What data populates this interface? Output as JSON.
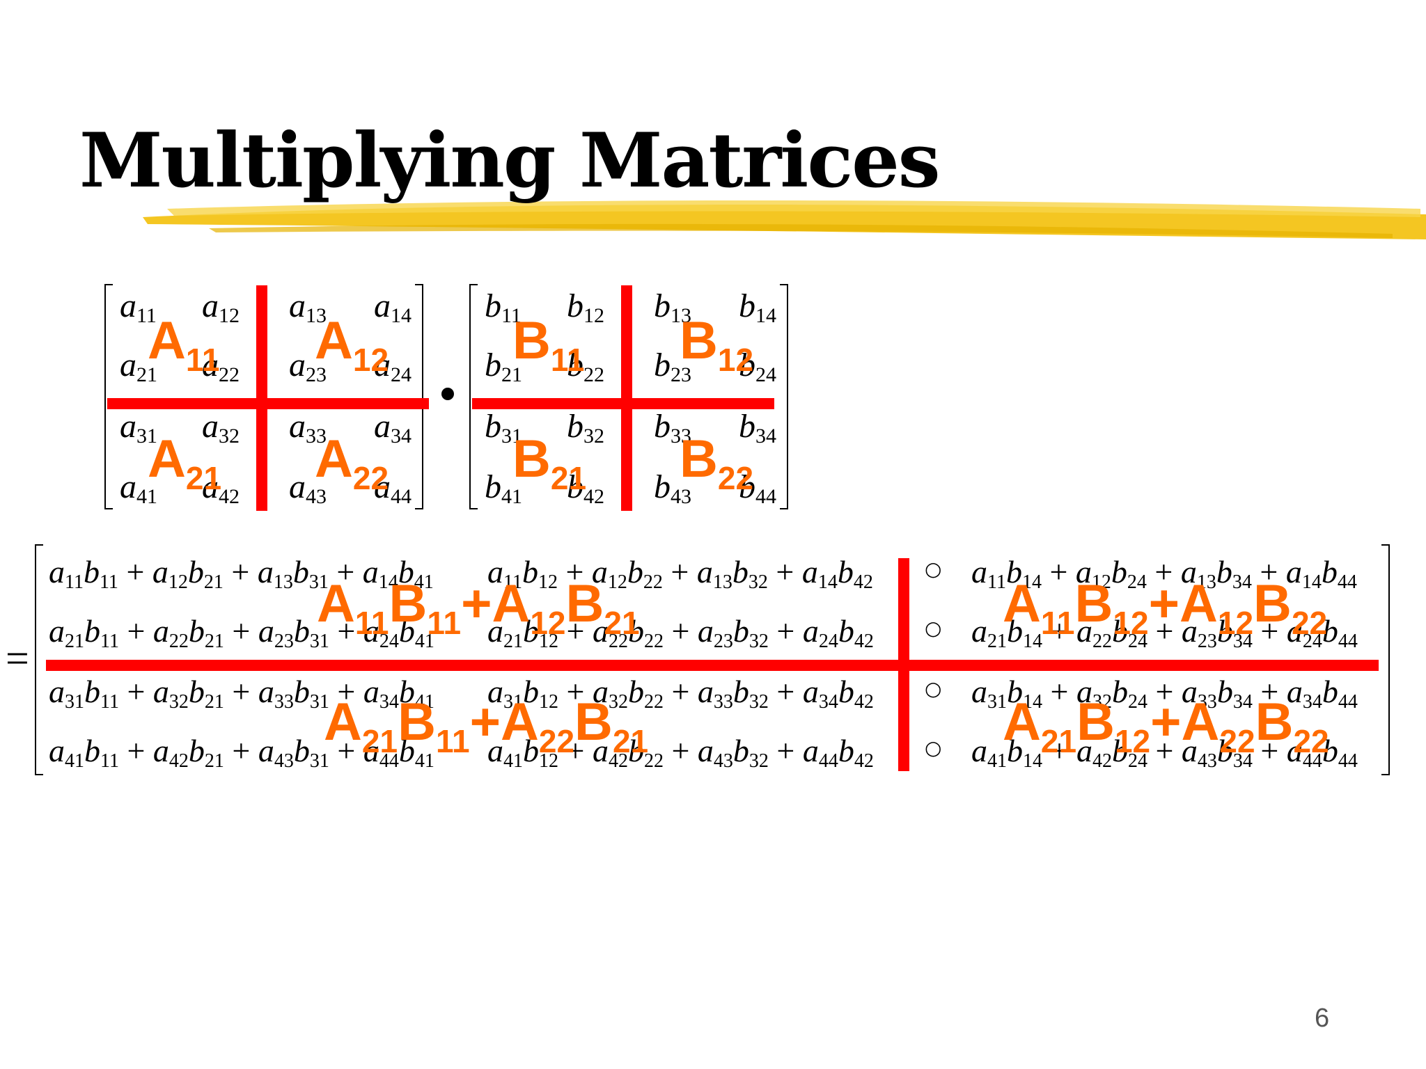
{
  "title": "Multiplying Matrices",
  "page_number": "6",
  "matrix_a": [
    [
      [
        "a",
        "11"
      ],
      [
        "a",
        "12"
      ],
      [
        "a",
        "13"
      ],
      [
        "a",
        "14"
      ]
    ],
    [
      [
        "a",
        "21"
      ],
      [
        "a",
        "22"
      ],
      [
        "a",
        "23"
      ],
      [
        "a",
        "24"
      ]
    ],
    [
      [
        "a",
        "31"
      ],
      [
        "a",
        "32"
      ],
      [
        "a",
        "33"
      ],
      [
        "a",
        "34"
      ]
    ],
    [
      [
        "a",
        "41"
      ],
      [
        "a",
        "42"
      ],
      [
        "a",
        "43"
      ],
      [
        "a",
        "44"
      ]
    ]
  ],
  "matrix_b": [
    [
      [
        "b",
        "11"
      ],
      [
        "b",
        "12"
      ],
      [
        "b",
        "13"
      ],
      [
        "b",
        "14"
      ]
    ],
    [
      [
        "b",
        "21"
      ],
      [
        "b",
        "22"
      ],
      [
        "b",
        "23"
      ],
      [
        "b",
        "24"
      ]
    ],
    [
      [
        "b",
        "31"
      ],
      [
        "b",
        "32"
      ],
      [
        "b",
        "33"
      ],
      [
        "b",
        "34"
      ]
    ],
    [
      [
        "b",
        "41"
      ],
      [
        "b",
        "42"
      ],
      [
        "b",
        "43"
      ],
      [
        "b",
        "44"
      ]
    ]
  ],
  "block_labels_a": [
    [
      "A",
      "11"
    ],
    [
      "A",
      "12"
    ],
    [
      "A",
      "21"
    ],
    [
      "A",
      "22"
    ]
  ],
  "block_labels_b": [
    [
      "B",
      "11"
    ],
    [
      "B",
      "12"
    ],
    [
      "B",
      "21"
    ],
    [
      "B",
      "22"
    ]
  ],
  "operator_dot": "•",
  "equals": "=",
  "result_separator": "○",
  "result_block_labels": [
    "A<sub>11</sub>B<sub>11</sub>+A<sub>12</sub>B<sub>21</sub>",
    "A<sub>11</sub>B<sub>12</sub>+A<sub>12</sub>B<sub>22</sub>",
    "A<sub>21</sub>B<sub>11</sub>+A<sub>22</sub>B<sub>21</sub>",
    "A<sub>21</sub>B<sub>12</sub>+A<sub>22</sub>B<sub>22</sub>"
  ],
  "result_rows": [
    {
      "row": "1"
    },
    {
      "row": "2"
    },
    {
      "row": "3"
    },
    {
      "row": "4"
    }
  ]
}
